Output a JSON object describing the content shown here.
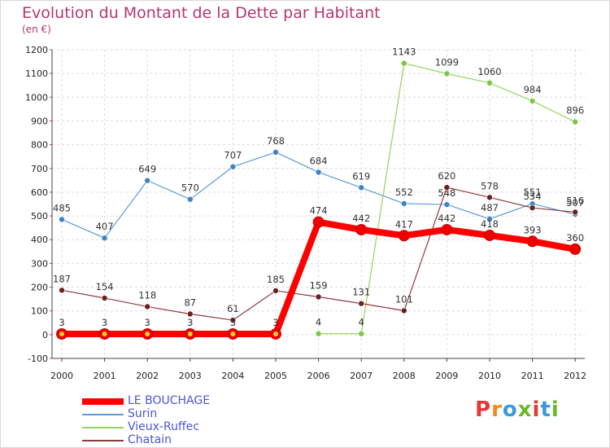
{
  "title": "Evolution du Montant de la Dette par Habitant",
  "unit_label": "(en €)",
  "logo_text": "Proxiti",
  "logo_colors": [
    "#e23a3a",
    "#f08c1c",
    "#3c9ad8",
    "#69b828",
    "#e23a3a",
    "#3c9ad8",
    "#69b828"
  ],
  "chart_data": {
    "type": "line",
    "x": [
      2000,
      2001,
      2002,
      2003,
      2004,
      2005,
      2006,
      2007,
      2008,
      2009,
      2010,
      2011,
      2012
    ],
    "ylim": [
      -100,
      1200
    ],
    "yticks": [
      -100,
      0,
      100,
      200,
      300,
      400,
      500,
      600,
      700,
      800,
      900,
      1000,
      1100,
      1200
    ],
    "grid": true,
    "legend_position": "bottom-left",
    "series": [
      {
        "name": "Surin",
        "color": "#5b9bd5",
        "point_color": "#3c84c6",
        "width": 1.2,
        "radius": 3.5,
        "values": [
          485,
          407,
          649,
          570,
          707,
          768,
          684,
          619,
          552,
          548,
          487,
          551,
          507
        ],
        "labels": [
          "485",
          "407",
          "649",
          "570",
          "707",
          "768",
          "684",
          "619",
          "552",
          "548",
          "487",
          "551",
          "507"
        ]
      },
      {
        "name": "Vieux-Ruffec",
        "color": "#8fd65a",
        "point_color": "#7ac843",
        "width": 1.2,
        "radius": 3.5,
        "values": [
          null,
          null,
          null,
          null,
          null,
          null,
          4,
          4,
          1143,
          1099,
          1060,
          984,
          896
        ],
        "labels": [
          "",
          "",
          "",
          "",
          "",
          "",
          "4",
          "4",
          "1143",
          "1099",
          "1060",
          "984",
          "896"
        ]
      },
      {
        "name": "Chatain",
        "color": "#8a3d3d",
        "point_color": "#6e1f1f",
        "width": 1.2,
        "radius": 3.5,
        "values": [
          187,
          154,
          118,
          87,
          61,
          185,
          159,
          131,
          101,
          620,
          578,
          534,
          516
        ],
        "labels": [
          "187",
          "154",
          "118",
          "87",
          "61",
          "185",
          "159",
          "131",
          "101",
          "620",
          "578",
          "534",
          "516"
        ]
      },
      {
        "name": "LE BOUCHAGE",
        "color": "#ff0000",
        "point_color": "#ee0000",
        "width": 8,
        "radius": 6.5,
        "values": [
          3,
          3,
          3,
          3,
          3,
          3,
          474,
          442,
          417,
          442,
          418,
          393,
          360
        ],
        "labels": [
          "3",
          "3",
          "3",
          "3",
          "3",
          "3",
          "474",
          "442",
          "417",
          "442",
          "418",
          "393",
          "360"
        ]
      }
    ],
    "legend": [
      {
        "name": "LE BOUCHAGE",
        "color": "#ff0000",
        "thick": true
      },
      {
        "name": "Surin",
        "color": "#5b9bd5",
        "thick": false
      },
      {
        "name": "Vieux-Ruffec",
        "color": "#8fd65a",
        "thick": false
      },
      {
        "name": "Chatain",
        "color": "#8a3d3d",
        "thick": false
      }
    ]
  }
}
